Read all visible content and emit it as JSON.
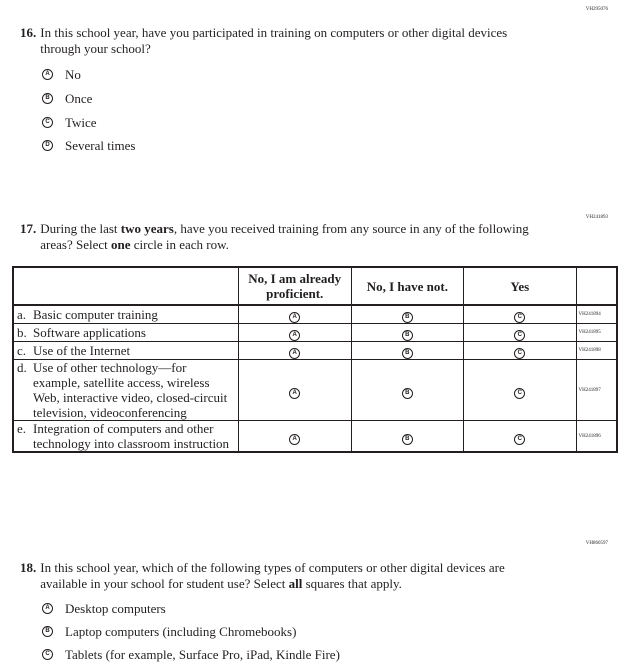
{
  "q16": {
    "id": "VH295076",
    "number": "16.",
    "text": "In this school year, have you participated in training on computers or other digital devices through your school?",
    "options": [
      {
        "letter": "A",
        "label": "No"
      },
      {
        "letter": "B",
        "label": "Once"
      },
      {
        "letter": "C",
        "label": "Twice"
      },
      {
        "letter": "D",
        "label": "Several times"
      }
    ]
  },
  "q17": {
    "id": "VH241893",
    "number": "17.",
    "text_pre": "During the last ",
    "text_bold1": "two years",
    "text_mid": ", have you received training from any source in any of the following areas? Select ",
    "text_bold2": "one",
    "text_post": " circle in each row.",
    "columns": [
      "No, I am already proficient.",
      "No, I have not.",
      "Yes"
    ],
    "column_letters": [
      "A",
      "B",
      "C"
    ],
    "rows": [
      {
        "letter": "a.",
        "label": "Basic computer training",
        "id": "VH241894"
      },
      {
        "letter": "b.",
        "label": "Software applications",
        "id": "VH241895"
      },
      {
        "letter": "c.",
        "label": "Use of the Internet",
        "id": "VH241898"
      },
      {
        "letter": "d.",
        "label": "Use of other technology—for example, satellite access, wireless Web, interactive video, closed-circuit television, videoconferencing",
        "id": "VH241897"
      },
      {
        "letter": "e.",
        "label": "Integration of computers and other technology into classroom instruction",
        "id": "VH241896"
      }
    ]
  },
  "q18": {
    "id": "VH860597",
    "number": "18.",
    "text_pre": "In this school year, which of the following types of computers or other digital devices are available in your school for student use? Select ",
    "text_bold": "all",
    "text_post": " squares that apply.",
    "options": [
      {
        "letter": "A",
        "label": "Desktop computers"
      },
      {
        "letter": "B",
        "label": "Laptop computers (including Chromebooks)"
      },
      {
        "letter": "C",
        "label": "Tablets (for example, Surface Pro, iPad, Kindle Fire)"
      }
    ]
  }
}
